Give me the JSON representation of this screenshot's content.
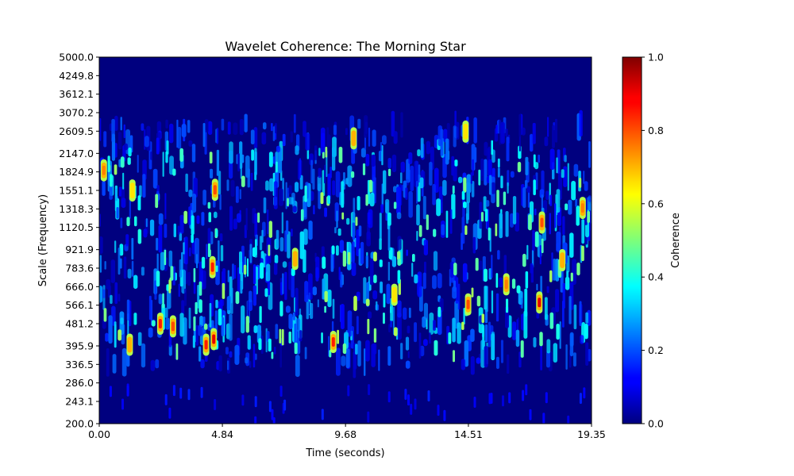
{
  "chart_data": {
    "type": "heatmap",
    "title": "Wavelet Coherence: The Morning Star",
    "xlabel": "Time (seconds)",
    "ylabel": "Scale (Frequency)",
    "xlim": [
      0.0,
      19.35
    ],
    "ylim": [
      200.0,
      5000.0
    ],
    "yscale": "log",
    "x_ticks": [
      "0.00",
      "4.84",
      "9.68",
      "14.51",
      "19.35"
    ],
    "y_ticks": [
      "5000.0",
      "4249.8",
      "3612.1",
      "3070.2",
      "2609.5",
      "2147.0",
      "1824.9",
      "1551.1",
      "1318.3",
      "1120.5",
      "921.9",
      "783.6",
      "666.0",
      "566.1",
      "481.2",
      "395.9",
      "336.5",
      "286.0",
      "243.1",
      "200.0"
    ],
    "colorbar": {
      "label": "Coherence",
      "range": [
        0.0,
        1.0
      ],
      "ticks": [
        "0.0",
        "0.2",
        "0.4",
        "0.6",
        "0.8",
        "1.0"
      ],
      "colormap": "jet"
    },
    "hotspots": [
      {
        "t": 0.18,
        "scale": 1850,
        "value": 0.75
      },
      {
        "t": 1.2,
        "scale": 400,
        "value": 0.7
      },
      {
        "t": 1.3,
        "scale": 1550,
        "value": 0.65
      },
      {
        "t": 2.4,
        "scale": 481,
        "value": 0.85
      },
      {
        "t": 2.9,
        "scale": 470,
        "value": 0.8
      },
      {
        "t": 4.2,
        "scale": 400,
        "value": 0.85
      },
      {
        "t": 4.5,
        "scale": 420,
        "value": 0.9
      },
      {
        "t": 4.45,
        "scale": 790,
        "value": 0.85
      },
      {
        "t": 4.55,
        "scale": 1560,
        "value": 0.8
      },
      {
        "t": 7.7,
        "scale": 850,
        "value": 0.7
      },
      {
        "t": 9.2,
        "scale": 410,
        "value": 0.85
      },
      {
        "t": 10.0,
        "scale": 2450,
        "value": 0.7
      },
      {
        "t": 11.6,
        "scale": 620,
        "value": 0.65
      },
      {
        "t": 14.5,
        "scale": 570,
        "value": 0.8
      },
      {
        "t": 14.4,
        "scale": 2600,
        "value": 0.65
      },
      {
        "t": 16.0,
        "scale": 680,
        "value": 0.75
      },
      {
        "t": 17.3,
        "scale": 580,
        "value": 0.9
      },
      {
        "t": 17.4,
        "scale": 1170,
        "value": 0.8
      },
      {
        "t": 18.2,
        "scale": 840,
        "value": 0.7
      },
      {
        "t": 19.0,
        "scale": 1330,
        "value": 0.75
      }
    ]
  }
}
